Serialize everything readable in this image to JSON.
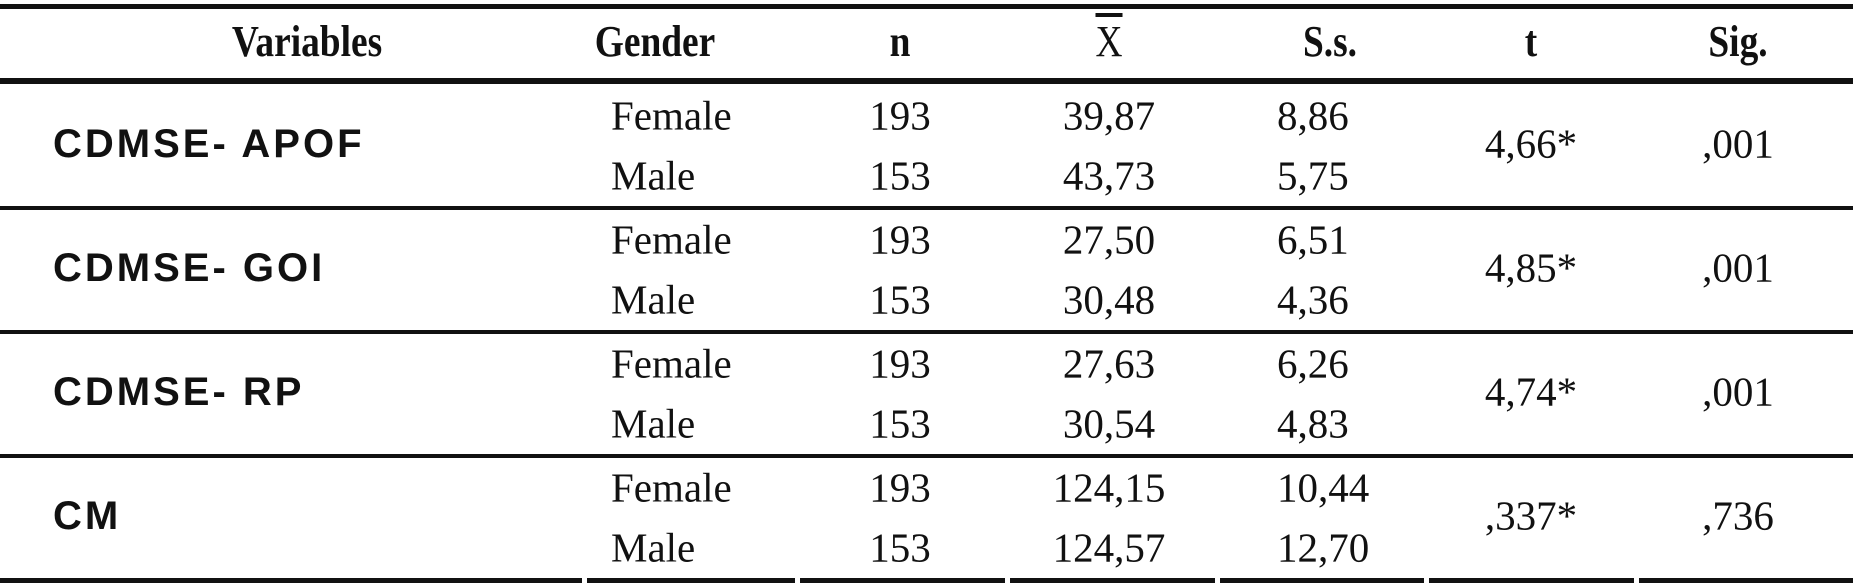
{
  "table": {
    "header": [
      "Variables",
      "Gender",
      "n",
      "X",
      "S.s.",
      "t",
      "Sig."
    ],
    "groups": [
      {
        "variable": "CDMSE- APOF",
        "rows": [
          [
            "Female",
            "193",
            "39,87",
            "8,86"
          ],
          [
            "Male",
            "153",
            "43,73",
            "5,75"
          ]
        ],
        "t": "4,66*",
        "sig": ",001"
      },
      {
        "variable": "CDMSE- GOI",
        "rows": [
          [
            "Female",
            "193",
            "27,50",
            "6,51"
          ],
          [
            "Male",
            "153",
            "30,48",
            "4,36"
          ]
        ],
        "t": "4,85*",
        "sig": ",001"
      },
      {
        "variable": "CDMSE- RP",
        "rows": [
          [
            "Female",
            "193",
            "27,63",
            "6,26"
          ],
          [
            "Male",
            "153",
            "30,54",
            "4,83"
          ]
        ],
        "t": "4,74*",
        "sig": ",001"
      },
      {
        "variable": "CM",
        "rows": [
          [
            "Female",
            "193",
            "124,15",
            "10,44"
          ],
          [
            "Male",
            "153",
            "124,57",
            "12,70"
          ]
        ],
        "t": ",337*",
        "sig": ",736"
      }
    ]
  }
}
